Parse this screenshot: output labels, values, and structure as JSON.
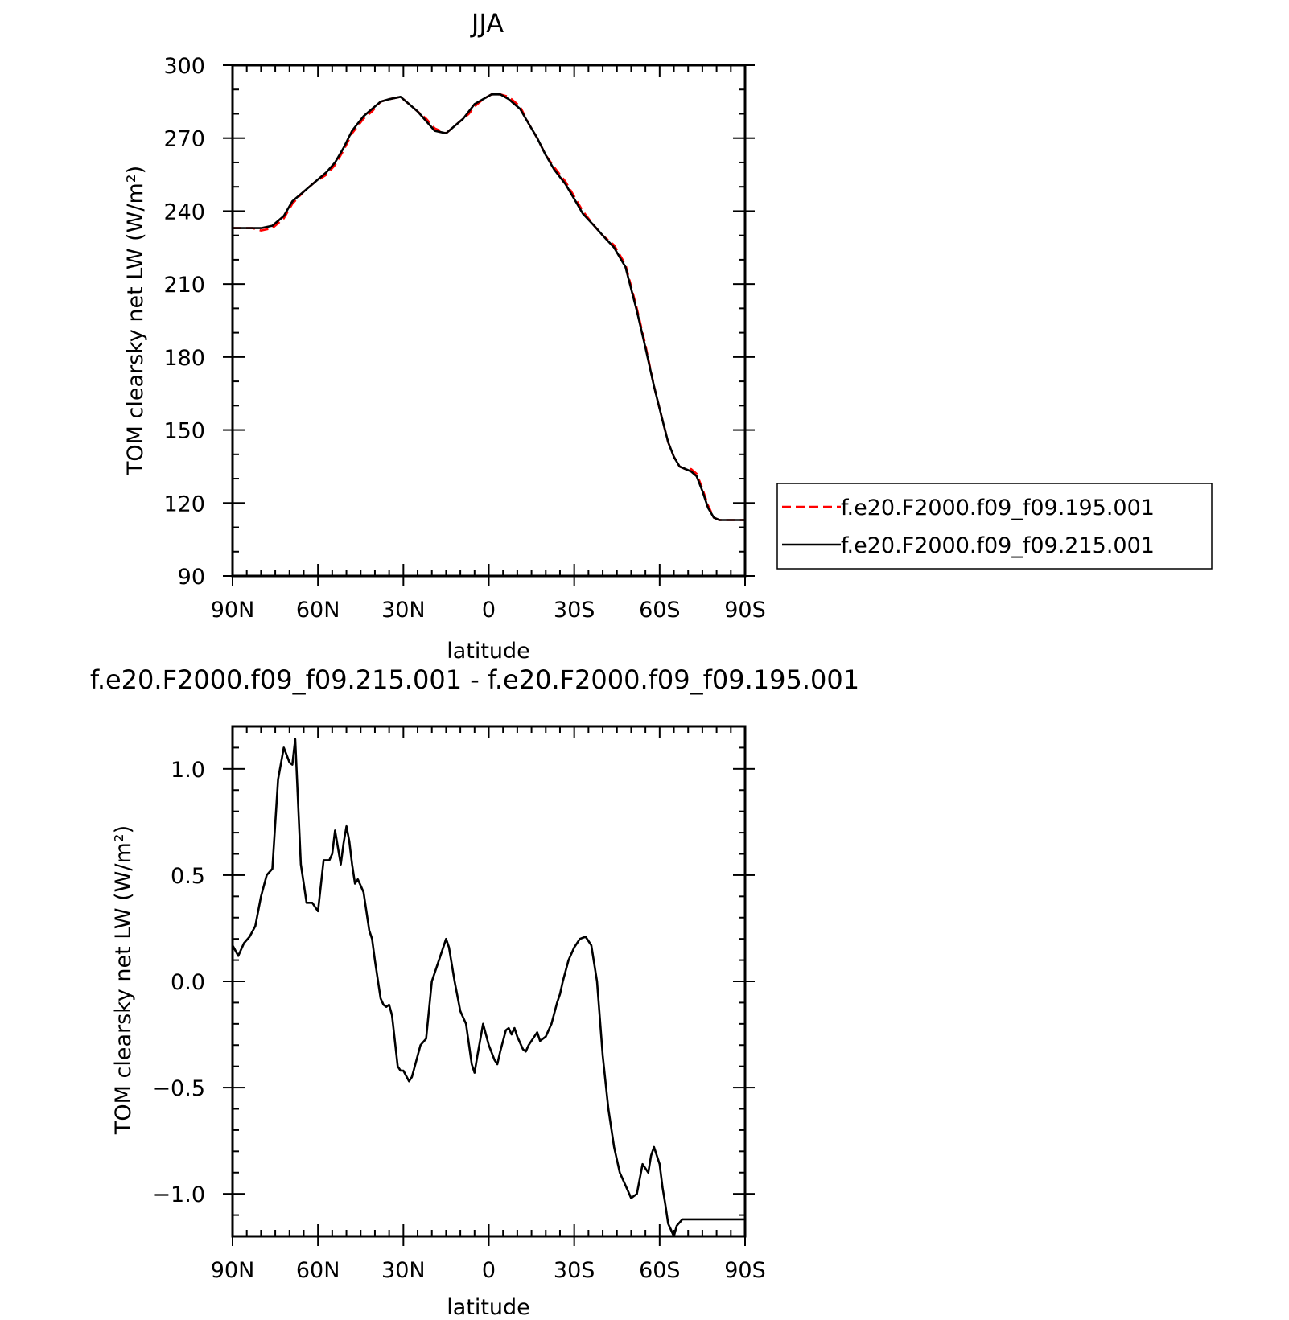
{
  "chart_data": [
    {
      "type": "line",
      "title": "JJA",
      "xlabel": "latitude",
      "ylabel": "TOM clearsky net LW (W/m²)",
      "xlim": [
        90,
        -90
      ],
      "ylim": [
        90,
        300
      ],
      "x_ticks": [
        "90N",
        "60N",
        "30N",
        "0",
        "30S",
        "60S",
        "90S"
      ],
      "y_ticks": [
        "300",
        "270",
        "240",
        "210",
        "180",
        "150",
        "120",
        "90"
      ],
      "legend_position": "right",
      "series": [
        {
          "name": "f.e20.F2000.f09_f09.195.001",
          "color": "#ff0000",
          "style": "dashed",
          "x": [
            90,
            86,
            83,
            80,
            76,
            72,
            69,
            65,
            61,
            57,
            54,
            51,
            48,
            44,
            41,
            38,
            35,
            31,
            28,
            25,
            22,
            19,
            15,
            12,
            9,
            7,
            5,
            2,
            -1,
            -4,
            -7,
            -11,
            -14,
            -17,
            -20,
            -23,
            -27,
            -30,
            -33,
            -37,
            -40,
            -44,
            -48,
            -52,
            -55,
            -58,
            -61,
            -63,
            -65,
            -67,
            -69,
            -71,
            -73,
            -75,
            -77,
            -79,
            -81,
            -83,
            -85,
            -86,
            -88,
            -90
          ],
          "y": [
            233,
            233,
            233,
            232,
            233,
            237,
            243,
            248,
            252,
            255,
            259,
            265,
            272,
            278,
            281,
            285,
            286,
            287,
            284,
            281,
            278,
            274,
            272,
            275,
            278,
            280,
            283,
            286,
            288,
            288,
            287,
            283,
            276,
            270,
            263,
            258,
            252,
            246,
            240,
            234,
            230,
            226,
            218,
            200,
            185,
            168,
            154,
            145,
            139,
            135,
            134,
            134,
            132,
            126,
            119,
            114,
            113,
            113,
            113,
            113,
            113,
            113
          ]
        },
        {
          "name": "f.e20.F2000.f09_f09.215.001",
          "color": "#000000",
          "style": "solid",
          "x": [
            90,
            86,
            83,
            80,
            76,
            72,
            69,
            65,
            61,
            57,
            54,
            51,
            48,
            44,
            41,
            38,
            35,
            31,
            28,
            25,
            22,
            19,
            15,
            12,
            9,
            7,
            5,
            2,
            -1,
            -4,
            -7,
            -11,
            -14,
            -17,
            -20,
            -23,
            -27,
            -30,
            -33,
            -37,
            -40,
            -44,
            -48,
            -52,
            -55,
            -58,
            -61,
            -63,
            -65,
            -67,
            -69,
            -71,
            -73,
            -75,
            -77,
            -79,
            -81,
            -83,
            -85,
            -86,
            -88,
            -90
          ],
          "y": [
            233,
            233,
            233,
            233,
            234,
            238,
            244,
            248,
            252,
            256,
            260,
            266,
            273,
            279,
            282,
            285,
            286,
            287,
            284,
            281,
            277,
            273,
            272,
            275,
            278,
            281,
            284,
            286,
            288,
            288,
            286,
            282,
            276,
            270,
            263,
            257,
            251,
            245,
            239,
            234,
            230,
            225,
            217,
            199,
            184,
            168,
            154,
            145,
            139,
            135,
            134,
            133,
            131,
            125,
            118,
            114,
            113,
            113,
            113,
            113,
            113,
            113
          ]
        }
      ]
    },
    {
      "type": "line",
      "title": "f.e20.F2000.f09_f09.215.001 - f.e20.F2000.f09_f09.195.001",
      "xlabel": "latitude",
      "ylabel": "TOM clearsky net LW (W/m²)",
      "xlim": [
        90,
        -90
      ],
      "ylim": [
        -1.2,
        1.2
      ],
      "x_ticks": [
        "90N",
        "60N",
        "30N",
        "0",
        "30S",
        "60S",
        "90S"
      ],
      "y_ticks": [
        "1.0",
        "0.5",
        "0.0",
        "−0.5",
        "−1.0"
      ],
      "series": [
        {
          "name": "",
          "color": "#000000",
          "style": "solid",
          "x": [
            90,
            88,
            86,
            84,
            82,
            80,
            78,
            76,
            74,
            72,
            70,
            69,
            68,
            66,
            65,
            64,
            62,
            60,
            58,
            56,
            55,
            54,
            52,
            51,
            50,
            49,
            48,
            47,
            46,
            45,
            44,
            42,
            41,
            40,
            38,
            37,
            36,
            35,
            34,
            32,
            31,
            30,
            28,
            27,
            26,
            24,
            22,
            20,
            18,
            16,
            15,
            14,
            12,
            10,
            8,
            6,
            5,
            4,
            2,
            0,
            -2,
            -3,
            -4,
            -5,
            -6,
            -7,
            -8,
            -9,
            -10,
            -12,
            -13,
            -14,
            -16,
            -17,
            -18,
            -20,
            -21,
            -22,
            -24,
            -25,
            -26,
            -28,
            -30,
            -32,
            -34,
            -36,
            -38,
            -40,
            -42,
            -44,
            -46,
            -48,
            -50,
            -52,
            -54,
            -56,
            -57,
            -58,
            -60,
            -61,
            -62,
            -63,
            -64,
            -65,
            -66,
            -68,
            -70,
            -71,
            -72,
            -73,
            -74,
            -75,
            -76,
            -77,
            -78,
            -79,
            -80,
            -81,
            -82,
            -83,
            -84,
            -85,
            -86,
            -87,
            -88,
            -89,
            -90
          ],
          "y": [
            0.17,
            0.12,
            0.18,
            0.21,
            0.26,
            0.4,
            0.5,
            0.53,
            0.95,
            1.1,
            1.03,
            1.02,
            1.14,
            0.55,
            0.46,
            0.37,
            0.37,
            0.33,
            0.57,
            0.57,
            0.6,
            0.71,
            0.55,
            0.65,
            0.73,
            0.66,
            0.55,
            0.46,
            0.48,
            0.45,
            0.42,
            0.24,
            0.2,
            0.1,
            -0.08,
            -0.11,
            -0.12,
            -0.11,
            -0.16,
            -0.4,
            -0.42,
            -0.42,
            -0.47,
            -0.45,
            -0.4,
            -0.3,
            -0.27,
            0.0,
            0.08,
            0.16,
            0.2,
            0.16,
            0.0,
            -0.14,
            -0.2,
            -0.39,
            -0.43,
            -0.35,
            -0.2,
            -0.3,
            -0.37,
            -0.39,
            -0.33,
            -0.28,
            -0.23,
            -0.22,
            -0.25,
            -0.22,
            -0.26,
            -0.32,
            -0.33,
            -0.3,
            -0.26,
            -0.24,
            -0.28,
            -0.26,
            -0.23,
            -0.2,
            -0.1,
            -0.06,
            0.0,
            0.1,
            0.16,
            0.2,
            0.21,
            0.17,
            0.0,
            -0.35,
            -0.6,
            -0.78,
            -0.9,
            -0.96,
            -1.02,
            -1.0,
            -0.86,
            -0.9,
            -0.82,
            -0.78,
            -0.86,
            -0.97,
            -1.05,
            -1.14,
            -1.17,
            -1.2,
            -1.15,
            -1.12,
            -1.12,
            -1.12,
            -1.12,
            -1.12,
            -1.12,
            -1.12,
            -1.12,
            -1.12,
            -1.12,
            -1.12,
            -1.12,
            -1.12,
            -1.12,
            -1.12,
            -1.12,
            -1.12,
            -1.12,
            -1.12,
            -1.12,
            -1.12,
            -1.12
          ]
        }
      ]
    }
  ]
}
